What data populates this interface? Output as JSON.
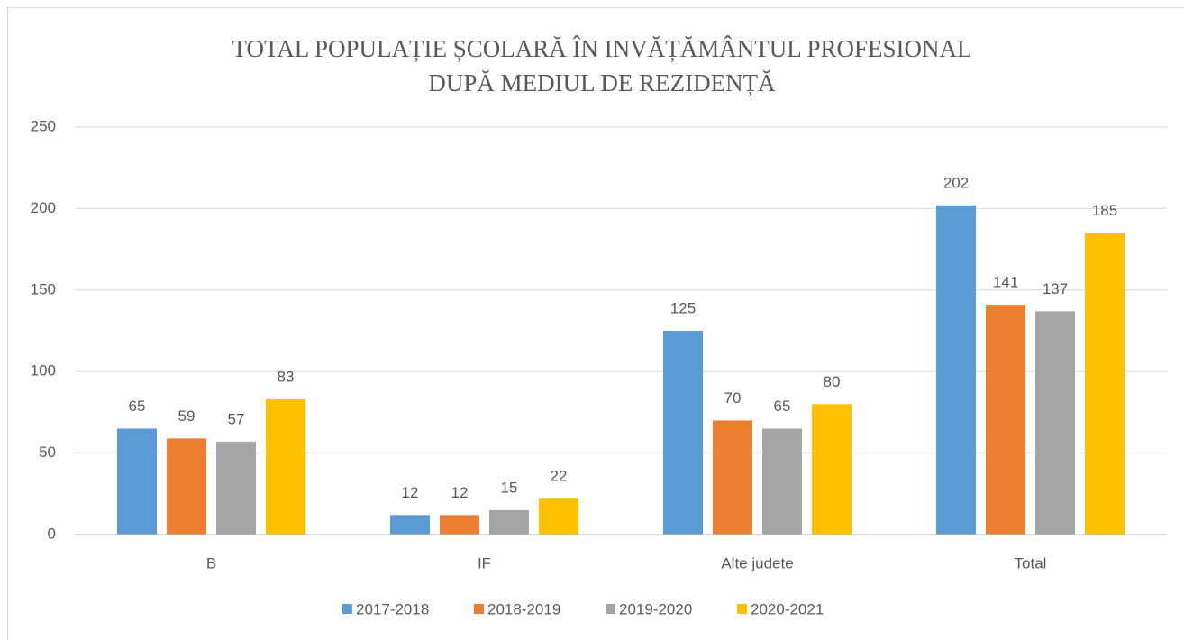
{
  "chart_data": {
    "type": "bar",
    "title": [
      "TOTAL POPULAȚIE ȘCOLARĂ  ÎN INVĂȚĂMÂNTUL PROFESIONAL",
      "DUPĂ MEDIUL DE REZIDENȚĂ"
    ],
    "categories": [
      "B",
      "IF",
      "Alte judete",
      "Total"
    ],
    "series": [
      {
        "name": "2017-2018",
        "color": "#5b9bd5",
        "values": [
          65,
          12,
          125,
          202
        ]
      },
      {
        "name": "2018-2019",
        "color": "#ed7d31",
        "values": [
          59,
          12,
          70,
          141
        ]
      },
      {
        "name": "2019-2020",
        "color": "#a5a5a5",
        "values": [
          57,
          15,
          65,
          137
        ]
      },
      {
        "name": "2020-2021",
        "color": "#ffc000",
        "values": [
          83,
          22,
          80,
          185
        ]
      }
    ],
    "ylim": [
      0,
      250
    ],
    "yticks": [
      0,
      50,
      100,
      150,
      200,
      250
    ],
    "grid": true,
    "legend": "bottom"
  }
}
